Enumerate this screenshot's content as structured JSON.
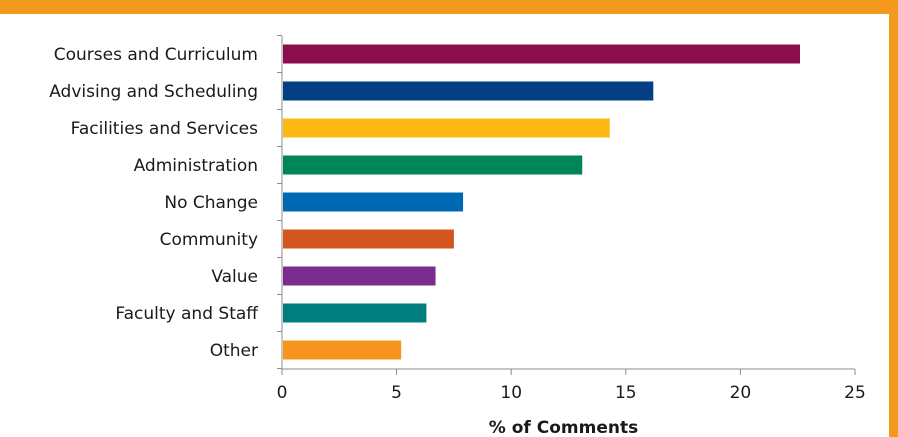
{
  "frame": {
    "color": "#F39A1E"
  },
  "chart_data": {
    "type": "bar",
    "orientation": "horizontal",
    "categories": [
      "Courses and Curriculum",
      "Advising and Scheduling",
      "Facilities and Services",
      "Administration",
      "No Change",
      "Community",
      "Value",
      "Faculty and Staff",
      "Other"
    ],
    "values": [
      22.6,
      16.2,
      14.3,
      13.1,
      7.9,
      7.5,
      6.7,
      6.3,
      5.2
    ],
    "colors": [
      "#8B0D4B",
      "#033F82",
      "#FDB813",
      "#00855A",
      "#0069B4",
      "#D4561F",
      "#7A2D8F",
      "#007E7E",
      "#F7941D"
    ],
    "title": "",
    "xlabel": "% of Comments",
    "ylabel": "",
    "xlim": [
      0,
      25
    ],
    "xticks": [
      "0",
      "5",
      "10",
      "15",
      "20",
      "25"
    ],
    "grid": false,
    "legend": "none"
  }
}
